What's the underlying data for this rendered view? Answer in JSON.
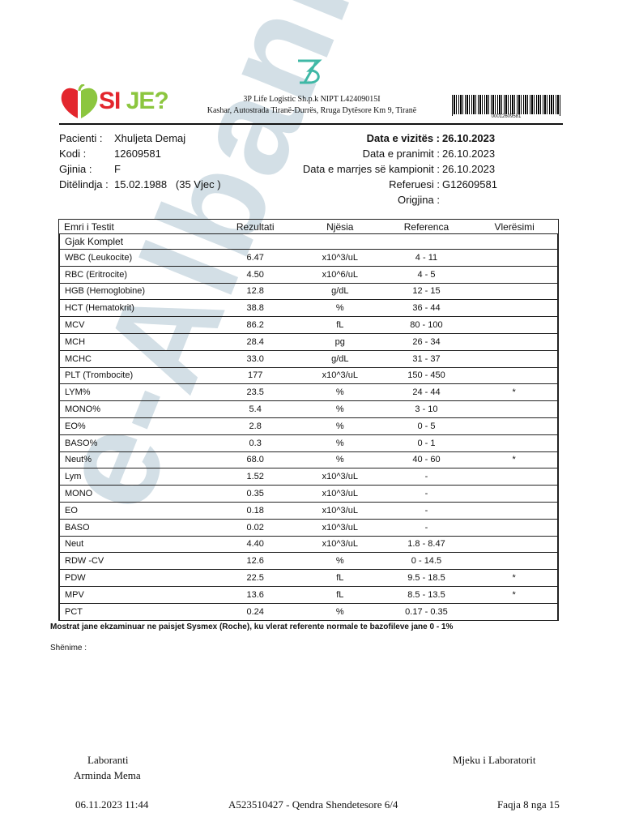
{
  "watermark": "e-Albania",
  "header": {
    "logo_text_1": "SI",
    "logo_text_2": "JE?",
    "company_line1": "3P Life Logistic Sh.p.k  NIPT L42409015I",
    "company_line2": "Kashar, Autostrada Tiranë-Durrës, Rruga Dytësore Km 9, Tiranë",
    "barcode_number": "00012609581",
    "brand_colors": {
      "red": "#e3262d",
      "green": "#8cc63f",
      "teal": "#3fb8a6"
    }
  },
  "patient": {
    "labels": [
      "Pacienti :",
      "Kodi :",
      "Gjinia :",
      "Ditëlindja :"
    ],
    "values": [
      "Xhuljeta Demaj",
      "12609581",
      "F",
      "15.02.1988   (35 Vjec )"
    ]
  },
  "visit": {
    "labels": [
      "Data e vizitës :",
      "Data e pranimit :",
      "Data e marrjes së kampionit :",
      "Referuesi :",
      "Origjina :"
    ],
    "values": [
      "26.10.2023",
      "26.10.2023",
      "26.10.2023",
      "G12609581",
      ""
    ]
  },
  "table": {
    "headers": [
      "Emri i Testit",
      "Rezultati",
      "Njësia",
      "Referenca",
      "Vlerësimi"
    ],
    "group": "Gjak Komplet",
    "rows": [
      [
        "WBC (Leukocite)",
        "6.47",
        "x10^3/uL",
        "4 - 11",
        ""
      ],
      [
        "RBC (Eritrocite)",
        "4.50",
        "x10^6/uL",
        "4 - 5",
        ""
      ],
      [
        "HGB (Hemoglobine)",
        "12.8",
        "g/dL",
        "12 - 15",
        ""
      ],
      [
        "HCT (Hematokrit)",
        "38.8",
        "%",
        "36 - 44",
        ""
      ],
      [
        "MCV",
        "86.2",
        "fL",
        "80 - 100",
        ""
      ],
      [
        "MCH",
        "28.4",
        "pg",
        "26 - 34",
        ""
      ],
      [
        "MCHC",
        "33.0",
        "g/dL",
        "31 - 37",
        ""
      ],
      [
        "PLT (Trombocite)",
        "177",
        "x10^3/uL",
        "150 - 450",
        ""
      ],
      [
        "LYM%",
        "23.5",
        "%",
        "24 - 44",
        "*"
      ],
      [
        "MONO%",
        "5.4",
        "%",
        "3 - 10",
        ""
      ],
      [
        "EO%",
        "2.8",
        "%",
        "0 - 5",
        ""
      ],
      [
        "BASO%",
        "0.3",
        "%",
        "0 - 1",
        ""
      ],
      [
        "Neut%",
        "68.0",
        "%",
        "40 - 60",
        "*"
      ],
      [
        "Lym",
        "1.52",
        "x10^3/uL",
        "-",
        ""
      ],
      [
        "MONO",
        "0.35",
        "x10^3/uL",
        "-",
        ""
      ],
      [
        "EO",
        "0.18",
        "x10^3/uL",
        "-",
        ""
      ],
      [
        "BASO",
        "0.02",
        "x10^3/uL",
        "-",
        ""
      ],
      [
        "Neut",
        "4.40",
        "x10^3/uL",
        "1.8 - 8.47",
        ""
      ],
      [
        "RDW -CV",
        "12.6",
        "%",
        "0 - 14.5",
        ""
      ],
      [
        "PDW",
        "22.5",
        "fL",
        "9.5 - 18.5",
        "*"
      ],
      [
        "MPV",
        "13.6",
        "fL",
        "8.5 - 13.5",
        "*"
      ],
      [
        "PCT",
        "0.24",
        "%",
        "0.17 - 0.35",
        ""
      ]
    ]
  },
  "note": "Mostrat jane ekzaminuar ne paisjet Sysmex (Roche), ku vlerat referente normale te bazofileve jane 0 - 1%",
  "shenime": "Shënime :",
  "footer": {
    "laboranti_label": "Laboranti",
    "laboranti_name": "Arminda Mema",
    "mjeku_label": "Mjeku i Laboratorit",
    "datetime": "06.11.2023 11:44",
    "center": "A523510427 - Qendra Shendetesore 6/4",
    "page": "Faqja 8 nga 15"
  }
}
